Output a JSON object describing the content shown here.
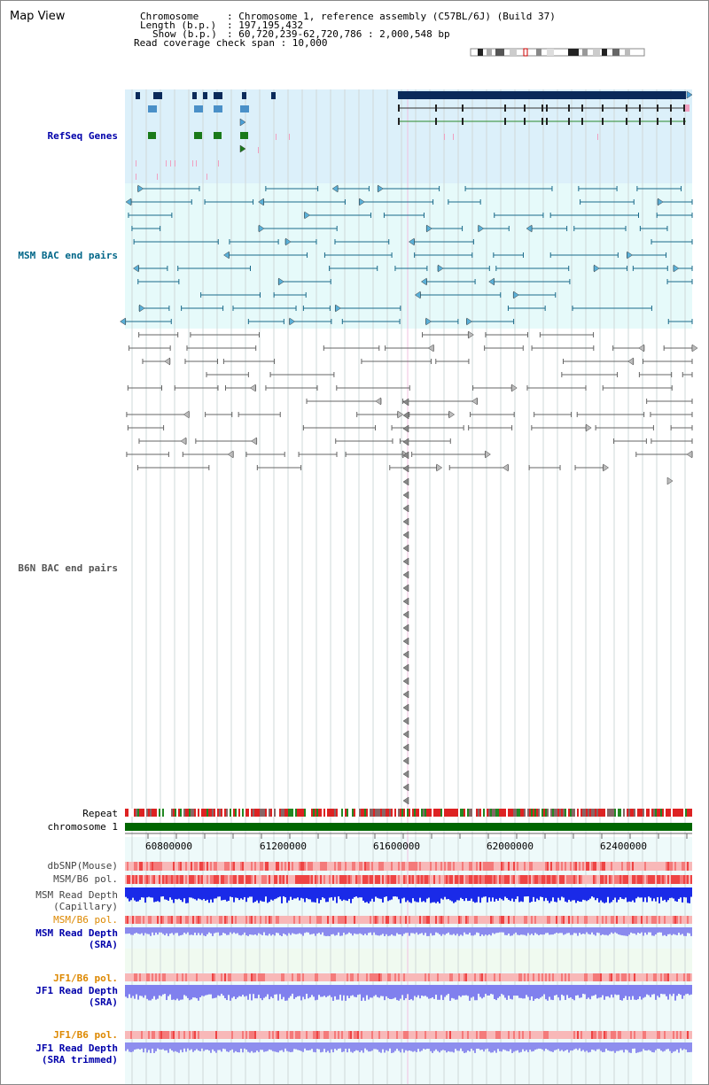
{
  "title": "Map View",
  "info": {
    "chromosome_label": "Chromosome",
    "chromosome_value": ": Chromosome 1, reference assembly (C57BL/6J) (Build 37)",
    "length_label": "Length (b.p.)",
    "length_value": ": 197,195,432",
    "show_label": "Show (b.p.)",
    "show_value": ": 60,720,239-62,720,786 : 2,000,548 bp",
    "coverage": "Read coverage check span : 10,000"
  },
  "tracks": {
    "refseq": "RefSeq Genes",
    "msm_bac": "MSM BAC end pairs",
    "b6n_bac": "B6N BAC end pairs",
    "repeat": "Repeat",
    "chromosome": "chromosome 1",
    "dbsnp": "dbSNP(Mouse)",
    "msm_b6_pol_1": "MSM/B6 pol.",
    "msm_depth_cap_1": "MSM Read Depth",
    "msm_depth_cap_2": "(Capillary)",
    "msm_b6_pol_2": "MSM/B6 pol.",
    "msm_depth_sra_1": "MSM Read Depth",
    "msm_depth_sra_2": "(SRA)",
    "jf1_pol_1": "JF1/B6 pol.",
    "jf1_depth_sra_1": "JF1 Read Depth",
    "jf1_depth_sra_2": "(SRA)",
    "jf1_pol_2": "JF1/B6 pol.",
    "jf1_depth_trim_1": "JF1 Read Depth",
    "jf1_depth_trim_2": "(SRA trimmed)"
  },
  "axis": {
    "ticks": [
      "60800000",
      "61200000",
      "61600000",
      "62000000",
      "62400000"
    ]
  },
  "colors": {
    "refseq_label": "#0000aa",
    "msm_label": "#006688",
    "b6n_label": "#555555",
    "pol_label": "#dd8800",
    "depth_label": "#0000aa",
    "chromosome_bar": "#006600",
    "refseq_bg": "#dcf0fa",
    "bac_bg": "#e6fafa"
  }
}
